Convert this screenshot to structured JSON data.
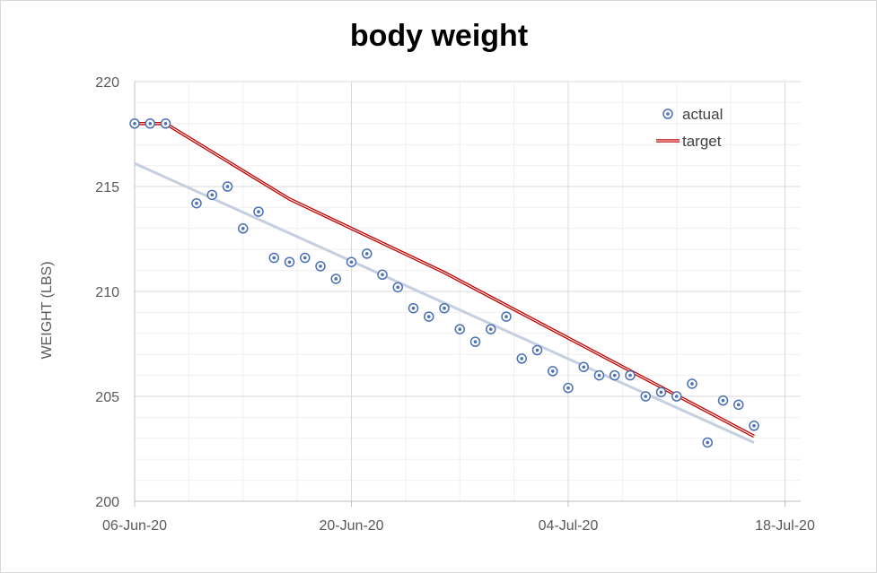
{
  "chart_data": {
    "type": "scatter",
    "title": "body weight",
    "xlabel": "",
    "ylabel": "WEIGHT (LBS)",
    "ylim": [
      200,
      220
    ],
    "yticks": [
      "200",
      "205",
      "210",
      "215",
      "220"
    ],
    "xlim": [
      "2020-06-06",
      "2020-07-19"
    ],
    "xticks": [
      {
        "date": "2020-06-06",
        "label": "06-Jun-20"
      },
      {
        "date": "2020-06-20",
        "label": "20-Jun-20"
      },
      {
        "date": "2020-07-04",
        "label": "04-Jul-20"
      },
      {
        "date": "2020-07-18",
        "label": "18-Jul-20"
      }
    ],
    "grid": true,
    "legend_position": "top-right",
    "series": [
      {
        "name": "actual",
        "type": "scatter",
        "color": "#4a6fb5",
        "points": [
          [
            "2020-06-06",
            218.0
          ],
          [
            "2020-06-07",
            218.0
          ],
          [
            "2020-06-08",
            218.0
          ],
          [
            "2020-06-10",
            214.2
          ],
          [
            "2020-06-11",
            214.6
          ],
          [
            "2020-06-12",
            215.0
          ],
          [
            "2020-06-13",
            213.0
          ],
          [
            "2020-06-14",
            213.8
          ],
          [
            "2020-06-15",
            211.6
          ],
          [
            "2020-06-16",
            211.4
          ],
          [
            "2020-06-17",
            211.6
          ],
          [
            "2020-06-18",
            211.2
          ],
          [
            "2020-06-19",
            210.6
          ],
          [
            "2020-06-20",
            211.4
          ],
          [
            "2020-06-21",
            211.8
          ],
          [
            "2020-06-22",
            210.8
          ],
          [
            "2020-06-23",
            210.2
          ],
          [
            "2020-06-24",
            209.2
          ],
          [
            "2020-06-25",
            208.8
          ],
          [
            "2020-06-26",
            209.2
          ],
          [
            "2020-06-27",
            208.2
          ],
          [
            "2020-06-28",
            207.6
          ],
          [
            "2020-06-29",
            208.2
          ],
          [
            "2020-06-30",
            208.8
          ],
          [
            "2020-07-01",
            206.8
          ],
          [
            "2020-07-02",
            207.2
          ],
          [
            "2020-07-03",
            206.2
          ],
          [
            "2020-07-04",
            205.4
          ],
          [
            "2020-07-05",
            206.4
          ],
          [
            "2020-07-06",
            206.0
          ],
          [
            "2020-07-07",
            206.0
          ],
          [
            "2020-07-08",
            206.0
          ],
          [
            "2020-07-09",
            205.0
          ],
          [
            "2020-07-10",
            205.2
          ],
          [
            "2020-07-11",
            205.0
          ],
          [
            "2020-07-12",
            205.6
          ],
          [
            "2020-07-13",
            202.8
          ],
          [
            "2020-07-14",
            204.8
          ],
          [
            "2020-07-15",
            204.6
          ],
          [
            "2020-07-16",
            203.6
          ]
        ]
      },
      {
        "name": "target",
        "type": "line",
        "color": "#c00000",
        "points": [
          [
            "2020-06-06",
            218.0
          ],
          [
            "2020-06-08",
            218.0
          ],
          [
            "2020-06-16",
            214.4
          ],
          [
            "2020-06-26",
            210.9
          ],
          [
            "2020-07-16",
            203.1
          ]
        ]
      },
      {
        "type": "trendline",
        "color": "#c5cfe0",
        "points": [
          [
            "2020-06-06",
            216.1
          ],
          [
            "2020-07-16",
            202.8
          ]
        ]
      }
    ]
  }
}
